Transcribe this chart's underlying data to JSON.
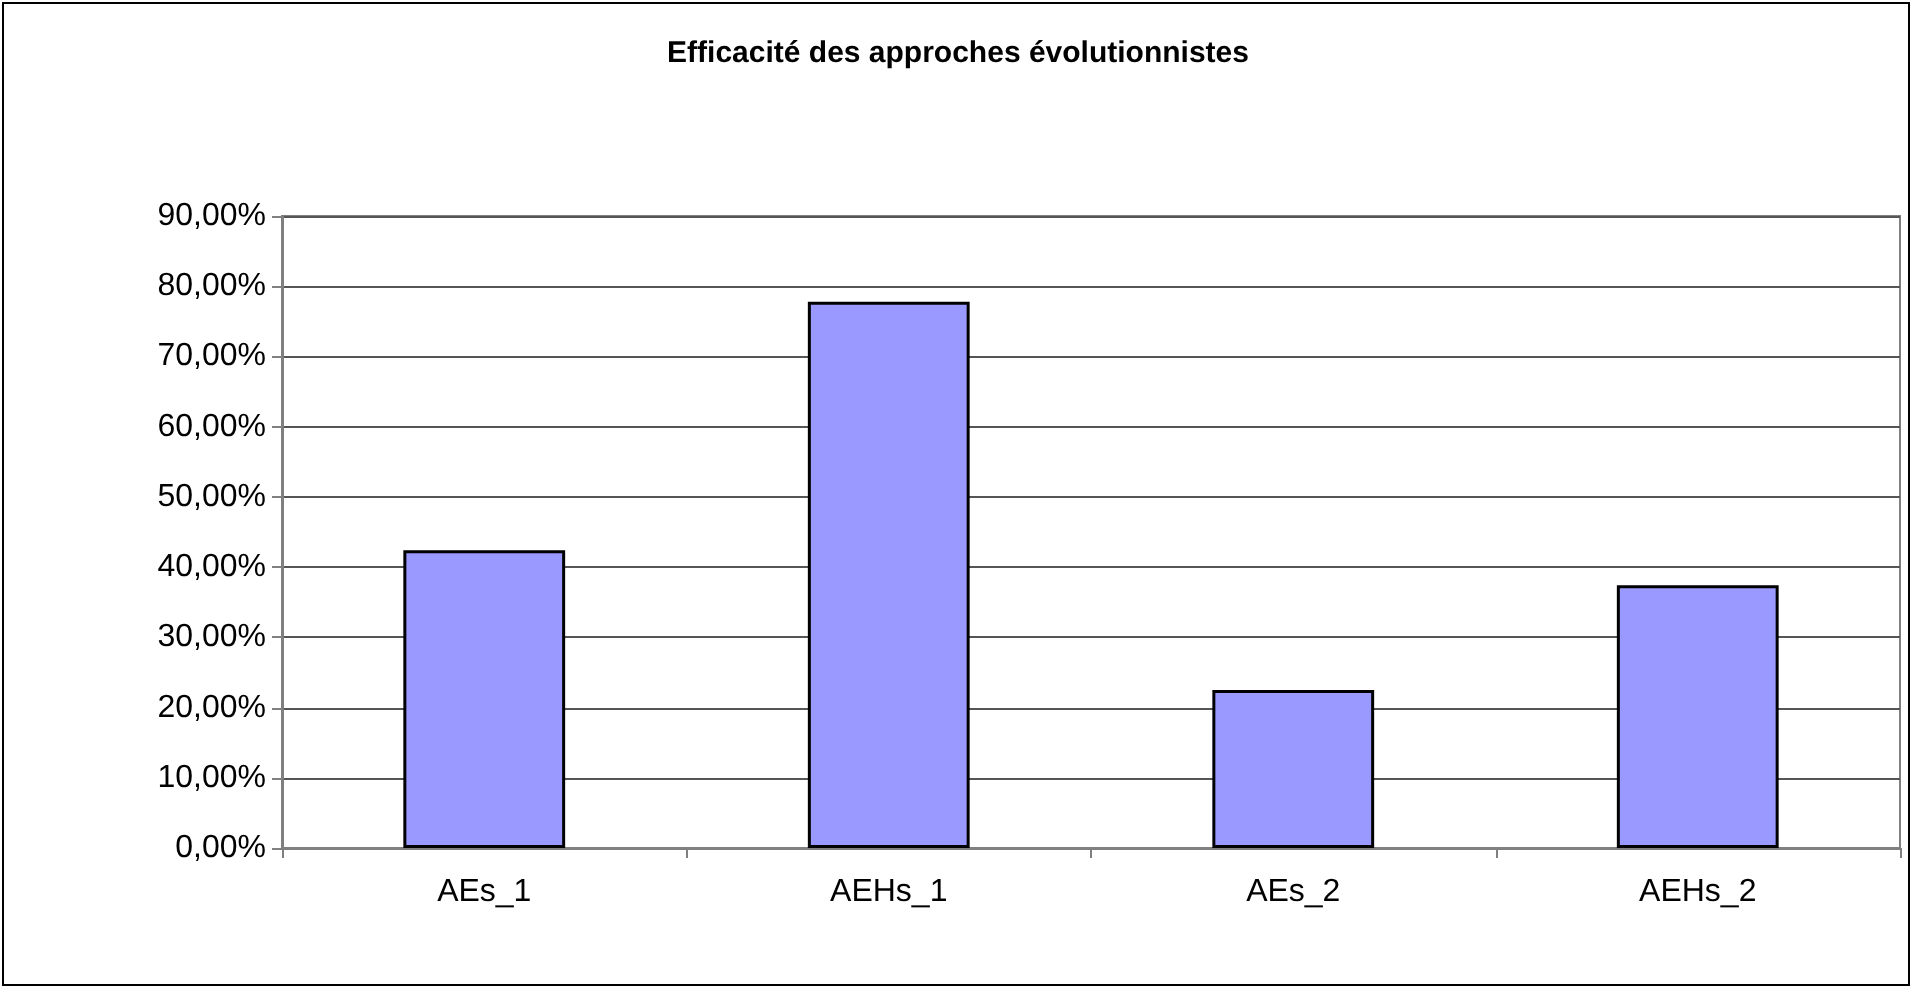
{
  "chart_data": {
    "type": "bar",
    "title": "Efficacité des approches évolutionnistes",
    "categories": [
      "AEs_1",
      "AEHs_1",
      "AEs_2",
      "AEHs_2"
    ],
    "values": [
      42.4,
      77.8,
      22.5,
      37.4
    ],
    "color": "#9999ff",
    "ylim": [
      0,
      90
    ],
    "yticks": [
      {
        "value": 0,
        "label": "0,00%"
      },
      {
        "value": 10,
        "label": "10,00%"
      },
      {
        "value": 20,
        "label": "20,00%"
      },
      {
        "value": 30,
        "label": "30,00%"
      },
      {
        "value": 40,
        "label": "40,00%"
      },
      {
        "value": 50,
        "label": "50,00%"
      },
      {
        "value": 60,
        "label": "60,00%"
      },
      {
        "value": 70,
        "label": "70,00%"
      },
      {
        "value": 80,
        "label": "80,00%"
      },
      {
        "value": 90,
        "label": "90,00%"
      }
    ],
    "grid": "y"
  }
}
